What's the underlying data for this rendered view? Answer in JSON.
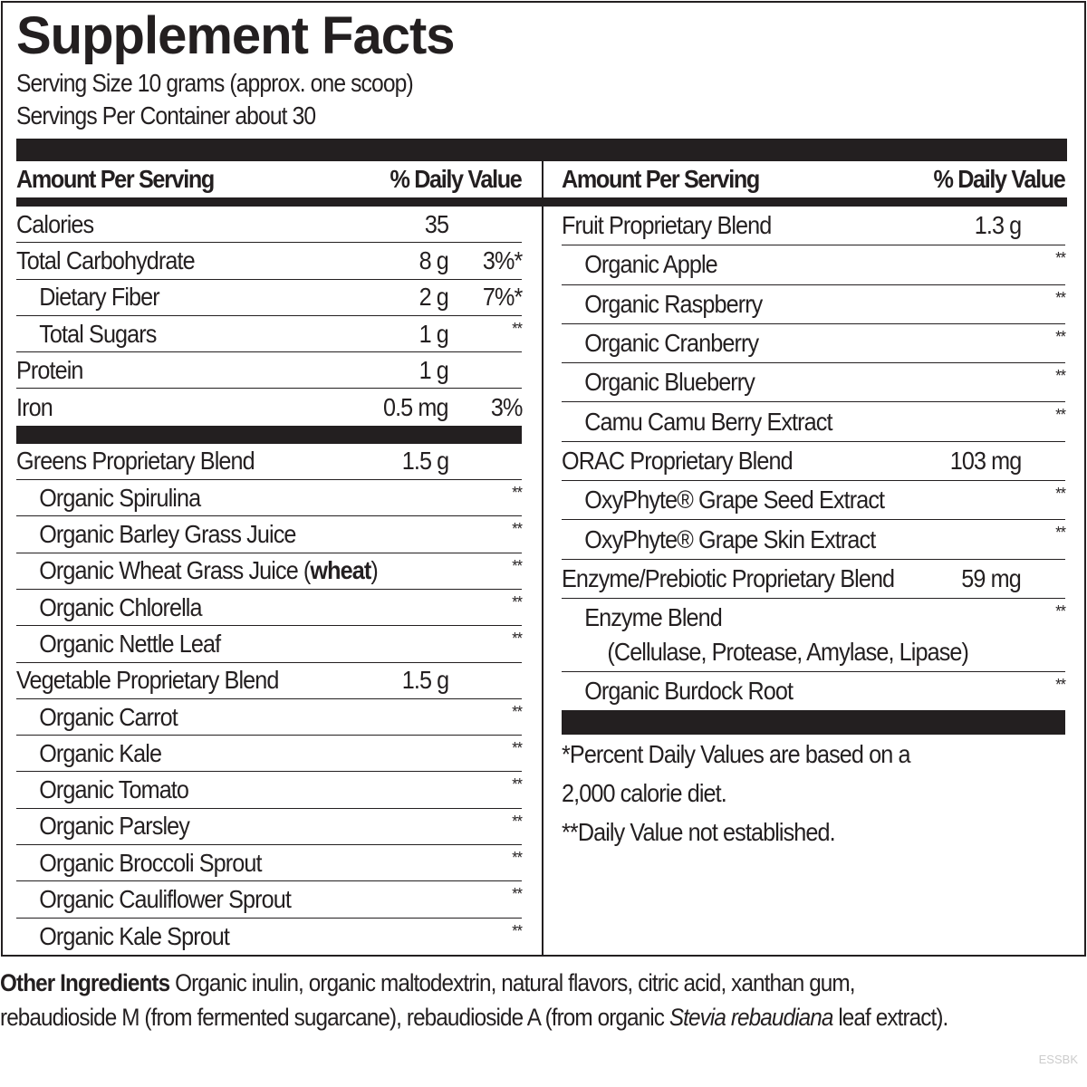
{
  "title": "Supplement Facts",
  "serving_size": "Serving Size 10 grams (approx. one scoop)",
  "servings_per_container": "Servings Per Container about 30",
  "header": {
    "amount": "Amount Per Serving",
    "dv": "% Daily Value"
  },
  "left_rows": [
    {
      "label": "Calories",
      "amount": "35",
      "dv": "",
      "indent": false
    },
    {
      "label": "Total Carbohydrate",
      "amount": "8 g",
      "dv": "3%*",
      "indent": false
    },
    {
      "label": "Dietary Fiber",
      "amount": "2 g",
      "dv": "7%*",
      "indent": true
    },
    {
      "label": "Total Sugars",
      "amount": "1 g",
      "dv": "**",
      "indent": true
    },
    {
      "label": "Protein",
      "amount": "1 g",
      "dv": "",
      "indent": false
    },
    {
      "label": "Iron",
      "amount": "0.5 mg",
      "dv": "3%",
      "indent": false,
      "thick_after": true
    },
    {
      "label": "Greens Proprietary Blend",
      "amount": "1.5 g",
      "dv": "",
      "indent": false
    },
    {
      "label": "Organic Spirulina",
      "amount": "",
      "dv": "**",
      "indent": true
    },
    {
      "label": "Organic Barley Grass Juice",
      "amount": "",
      "dv": "**",
      "indent": true
    },
    {
      "label": "Organic Wheat Grass Juice (",
      "bold": "wheat",
      "suffix": ")",
      "amount": "",
      "dv": "**",
      "indent": true
    },
    {
      "label": "Organic Chlorella",
      "amount": "",
      "dv": "**",
      "indent": true
    },
    {
      "label": "Organic Nettle Leaf",
      "amount": "",
      "dv": "**",
      "indent": true
    },
    {
      "label": "Vegetable Proprietary Blend",
      "amount": "1.5 g",
      "dv": "",
      "indent": false
    },
    {
      "label": "Organic Carrot",
      "amount": "",
      "dv": "**",
      "indent": true
    },
    {
      "label": "Organic Kale",
      "amount": "",
      "dv": "**",
      "indent": true
    },
    {
      "label": "Organic Tomato",
      "amount": "",
      "dv": "**",
      "indent": true
    },
    {
      "label": "Organic Parsley",
      "amount": "",
      "dv": "**",
      "indent": true
    },
    {
      "label": "Organic Broccoli Sprout",
      "amount": "",
      "dv": "**",
      "indent": true
    },
    {
      "label": "Organic Cauliflower Sprout",
      "amount": "",
      "dv": "**",
      "indent": true
    },
    {
      "label": "Organic Kale Sprout",
      "amount": "",
      "dv": "**",
      "indent": true,
      "last": true
    }
  ],
  "right_rows": [
    {
      "label": "Fruit Proprietary Blend",
      "amount": "1.3 g",
      "dv": "",
      "indent": false
    },
    {
      "label": "Organic Apple",
      "amount": "",
      "dv": "**",
      "indent": true
    },
    {
      "label": "Organic Raspberry",
      "amount": "",
      "dv": "**",
      "indent": true
    },
    {
      "label": "Organic Cranberry",
      "amount": "",
      "dv": "**",
      "indent": true
    },
    {
      "label": "Organic Blueberry",
      "amount": "",
      "dv": "**",
      "indent": true
    },
    {
      "label": "Camu Camu Berry Extract",
      "amount": "",
      "dv": "**",
      "indent": true
    },
    {
      "label": "ORAC Proprietary Blend",
      "amount": "103 mg",
      "dv": "",
      "indent": false
    },
    {
      "label": "OxyPhyte® Grape Seed Extract",
      "amount": "",
      "dv": "**",
      "indent": true
    },
    {
      "label": "OxyPhyte® Grape Skin Extract",
      "amount": "",
      "dv": "**",
      "indent": true
    },
    {
      "label": "Enzyme/Prebiotic Proprietary Blend",
      "amount": "59 mg",
      "dv": "",
      "indent": false
    },
    {
      "label": "Enzyme Blend",
      "label2": "(Cellulase, Protease, Amylase, Lipase)",
      "amount": "",
      "dv": "**",
      "indent": true
    },
    {
      "label": "Organic Burdock Root",
      "amount": "",
      "dv": "**",
      "indent": true
    }
  ],
  "footnotes": [
    "*Percent Daily Values are based on a",
    "2,000 calorie diet.",
    "**Daily Value not established."
  ],
  "other_ingredients": {
    "label": "Other Ingredients",
    "text1": " Organic inulin, organic maltodextrin, natural flavors, citric acid, xanthan gum,",
    "text2": "rebaudioside M (from fermented sugarcane), rebaudioside A (from organic ",
    "italic": "Stevia rebaudiana",
    "text3": " leaf extract)."
  },
  "code": "ESSBK"
}
